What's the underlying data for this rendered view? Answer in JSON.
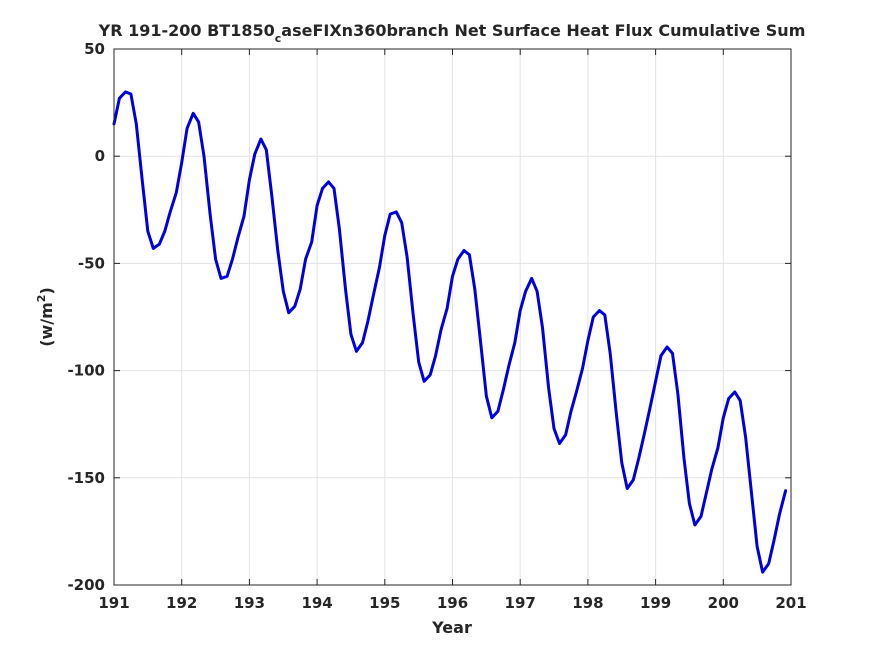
{
  "chart_data": {
    "type": "line",
    "title": {
      "main": "YR 191-200 BT1850",
      "subscript": "c",
      "rest": "aseFIXn360branch Net Surface Heat Flux  Cumulative Sum"
    },
    "xlabel": "Year",
    "ylabel": {
      "base": "(w/m",
      "sup": "2",
      "close": ")"
    },
    "xlim": [
      191,
      201
    ],
    "ylim": [
      -200,
      50
    ],
    "xticks": [
      191,
      192,
      193,
      194,
      195,
      196,
      197,
      198,
      199,
      200,
      201
    ],
    "yticks": [
      -200,
      -150,
      -100,
      -50,
      0,
      50
    ],
    "grid": true,
    "series": [
      {
        "color": "#0000dd",
        "x": [
          191.0,
          191.08,
          191.17,
          191.25,
          191.33,
          191.42,
          191.5,
          191.58,
          191.67,
          191.75,
          191.83,
          191.92,
          192.0,
          192.08,
          192.17,
          192.25,
          192.33,
          192.42,
          192.5,
          192.58,
          192.67,
          192.75,
          192.83,
          192.92,
          193.0,
          193.08,
          193.17,
          193.25,
          193.33,
          193.42,
          193.5,
          193.58,
          193.67,
          193.75,
          193.83,
          193.92,
          194.0,
          194.08,
          194.17,
          194.25,
          194.33,
          194.42,
          194.5,
          194.58,
          194.67,
          194.75,
          194.83,
          194.92,
          195.0,
          195.08,
          195.17,
          195.25,
          195.33,
          195.42,
          195.5,
          195.58,
          195.67,
          195.75,
          195.83,
          195.92,
          196.0,
          196.08,
          196.17,
          196.25,
          196.33,
          196.42,
          196.5,
          196.58,
          196.67,
          196.75,
          196.83,
          196.92,
          197.0,
          197.08,
          197.17,
          197.25,
          197.33,
          197.42,
          197.5,
          197.58,
          197.67,
          197.75,
          197.83,
          197.92,
          198.0,
          198.08,
          198.17,
          198.25,
          198.33,
          198.42,
          198.5,
          198.58,
          198.67,
          198.75,
          198.83,
          198.92,
          199.0,
          199.08,
          199.17,
          199.25,
          199.33,
          199.42,
          199.5,
          199.58,
          199.67,
          199.75,
          199.83,
          199.92,
          200.0,
          200.08,
          200.17,
          200.25,
          200.33,
          200.42,
          200.5,
          200.58,
          200.67,
          200.75,
          200.83,
          200.92
        ],
        "y": [
          15,
          27,
          30,
          29,
          15,
          -12,
          -35,
          -43,
          -41,
          -35,
          -26,
          -17,
          -3,
          13,
          20,
          16,
          0,
          -27,
          -48,
          -57,
          -56,
          -48,
          -38,
          -28,
          -11,
          1,
          8,
          3,
          -18,
          -44,
          -63,
          -73,
          -70,
          -62,
          -48,
          -40,
          -23,
          -15,
          -12,
          -15,
          -34,
          -62,
          -83,
          -91,
          -87,
          -77,
          -65,
          -52,
          -37,
          -27,
          -26,
          -31,
          -47,
          -74,
          -96,
          -105,
          -102,
          -93,
          -81,
          -71,
          -56,
          -48,
          -44,
          -46,
          -62,
          -88,
          -112,
          -122,
          -119,
          -109,
          -98,
          -87,
          -72,
          -63,
          -57,
          -63,
          -80,
          -108,
          -127,
          -134,
          -130,
          -119,
          -110,
          -99,
          -86,
          -75,
          -72,
          -74,
          -92,
          -120,
          -143,
          -155,
          -151,
          -141,
          -130,
          -117,
          -105,
          -93,
          -89,
          -92,
          -111,
          -141,
          -162,
          -172,
          -168,
          -157,
          -146,
          -136,
          -122,
          -113,
          -110,
          -114,
          -131,
          -158,
          -182,
          -194,
          -190,
          -179,
          -167,
          -156
        ]
      }
    ]
  }
}
